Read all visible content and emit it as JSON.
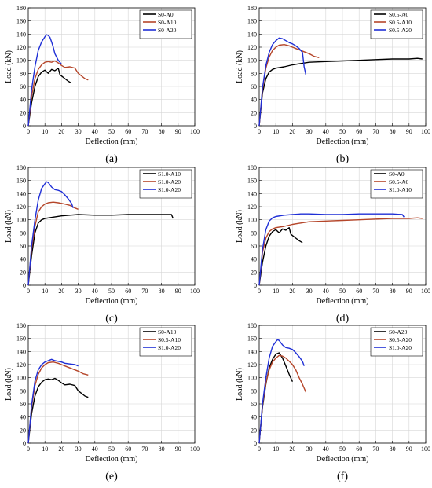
{
  "figure": {
    "panels": [
      "(a)",
      "(b)",
      "(c)",
      "(d)",
      "(e)",
      "(f)"
    ]
  },
  "colors": {
    "black": "#000000",
    "red": "#b5462a",
    "blue": "#1f2fd6"
  },
  "chart_data": [
    {
      "type": "line",
      "panel": "(a)",
      "xlabel": "Deflection (mm)",
      "ylabel": "Load (kN)",
      "xlim": [
        0,
        100
      ],
      "ylim": [
        0,
        180
      ],
      "xticks": [
        "0",
        "10",
        "20",
        "30",
        "40",
        "50",
        "60",
        "70",
        "80",
        "90",
        "100"
      ],
      "yticks": [
        "0",
        "20",
        "40",
        "60",
        "80",
        "100",
        "120",
        "140",
        "160",
        "180"
      ],
      "grid": true,
      "legend": "top-right",
      "series": [
        {
          "name": "S0-A0",
          "color": "#000000",
          "x": [
            0,
            2,
            4,
            6,
            8,
            10,
            12,
            14,
            16,
            18,
            19,
            20,
            22,
            24,
            26
          ],
          "y": [
            0,
            35,
            60,
            75,
            82,
            85,
            80,
            86,
            84,
            88,
            78,
            76,
            72,
            68,
            65
          ]
        },
        {
          "name": "S0-A10",
          "color": "#b5462a",
          "x": [
            0,
            2,
            4,
            6,
            8,
            10,
            12,
            14,
            16,
            18,
            20,
            22,
            25,
            28,
            30,
            34,
            36
          ],
          "y": [
            0,
            45,
            72,
            86,
            93,
            97,
            98,
            97,
            99,
            96,
            92,
            89,
            90,
            88,
            80,
            72,
            70
          ]
        },
        {
          "name": "S0-A20",
          "color": "#1f2fd6",
          "x": [
            0,
            2,
            4,
            6,
            8,
            10,
            11,
            12,
            13,
            14,
            15,
            16,
            18,
            20
          ],
          "y": [
            0,
            55,
            90,
            115,
            128,
            136,
            139,
            138,
            135,
            128,
            120,
            110,
            100,
            94
          ]
        }
      ]
    },
    {
      "type": "line",
      "panel": "(b)",
      "xlabel": "Deflection (mm)",
      "ylabel": "Load (kN)",
      "xlim": [
        0,
        100
      ],
      "ylim": [
        0,
        180
      ],
      "xticks": [
        "0",
        "10",
        "20",
        "30",
        "40",
        "50",
        "60",
        "70",
        "80",
        "90",
        "100"
      ],
      "yticks": [
        "0",
        "20",
        "40",
        "60",
        "80",
        "100",
        "120",
        "140",
        "160",
        "180"
      ],
      "grid": true,
      "legend": "top-right",
      "series": [
        {
          "name": "S0.5-A0",
          "color": "#000000",
          "x": [
            0,
            2,
            4,
            6,
            8,
            10,
            15,
            20,
            25,
            30,
            40,
            50,
            60,
            70,
            80,
            90,
            95,
            98
          ],
          "y": [
            0,
            50,
            72,
            82,
            86,
            88,
            90,
            93,
            95,
            97,
            98,
            99,
            100,
            101,
            102,
            102,
            103,
            102
          ]
        },
        {
          "name": "S0.5-A10",
          "color": "#b5462a",
          "x": [
            0,
            2,
            4,
            6,
            8,
            10,
            12,
            15,
            18,
            20,
            22,
            25,
            28,
            30,
            33,
            36
          ],
          "y": [
            0,
            55,
            88,
            105,
            115,
            120,
            123,
            124,
            122,
            120,
            118,
            115,
            112,
            110,
            106,
            104
          ]
        },
        {
          "name": "S0.5-A20",
          "color": "#1f2fd6",
          "x": [
            0,
            2,
            4,
            6,
            8,
            10,
            12,
            14,
            16,
            18,
            20,
            22,
            24,
            26,
            27,
            28
          ],
          "y": [
            0,
            58,
            92,
            112,
            124,
            130,
            134,
            133,
            130,
            127,
            125,
            122,
            118,
            112,
            90,
            78
          ]
        }
      ]
    },
    {
      "type": "line",
      "panel": "(c)",
      "xlabel": "Deflection (mm)",
      "ylabel": "Load (kN)",
      "xlim": [
        0,
        100
      ],
      "ylim": [
        0,
        180
      ],
      "xticks": [
        "0",
        "10",
        "20",
        "30",
        "40",
        "50",
        "60",
        "70",
        "80",
        "90",
        "100"
      ],
      "yticks": [
        "0",
        "20",
        "40",
        "60",
        "80",
        "100",
        "120",
        "140",
        "160",
        "180"
      ],
      "grid": true,
      "legend": "top-right",
      "series": [
        {
          "name": "S1.0-A10",
          "color": "#000000",
          "x": [
            0,
            2,
            4,
            6,
            8,
            10,
            15,
            20,
            25,
            30,
            40,
            50,
            60,
            70,
            80,
            86,
            87
          ],
          "y": [
            0,
            45,
            80,
            95,
            100,
            102,
            104,
            106,
            107,
            108,
            107,
            107,
            108,
            108,
            108,
            108,
            102
          ]
        },
        {
          "name": "S1.0-A20",
          "color": "#b5462a",
          "x": [
            0,
            2,
            4,
            6,
            8,
            10,
            12,
            15,
            18,
            20,
            22,
            25,
            28,
            30
          ],
          "y": [
            0,
            55,
            90,
            112,
            120,
            124,
            126,
            127,
            126,
            125,
            124,
            122,
            118,
            116
          ]
        },
        {
          "name": "S1.0-A20",
          "color": "#1f2fd6",
          "x": [
            0,
            2,
            4,
            6,
            8,
            10,
            11,
            12,
            14,
            16,
            18,
            20,
            22,
            24,
            26,
            27
          ],
          "y": [
            0,
            60,
            100,
            130,
            148,
            155,
            158,
            157,
            150,
            146,
            145,
            143,
            138,
            132,
            125,
            118
          ]
        }
      ]
    },
    {
      "type": "line",
      "panel": "(d)",
      "xlabel": "Deflection (mm)",
      "ylabel": "Load (kN)",
      "xlim": [
        0,
        100
      ],
      "ylim": [
        0,
        180
      ],
      "xticks": [
        "0",
        "10",
        "20",
        "30",
        "40",
        "50",
        "60",
        "70",
        "80",
        "90",
        "100"
      ],
      "yticks": [
        "0",
        "20",
        "40",
        "60",
        "80",
        "100",
        "120",
        "140",
        "160",
        "180"
      ],
      "grid": true,
      "legend": "top-right",
      "series": [
        {
          "name": "S0-A0",
          "color": "#000000",
          "x": [
            0,
            2,
            4,
            6,
            8,
            10,
            12,
            14,
            16,
            18,
            19,
            20,
            22,
            24,
            26
          ],
          "y": [
            0,
            35,
            60,
            75,
            82,
            85,
            80,
            86,
            84,
            88,
            78,
            76,
            72,
            68,
            65
          ]
        },
        {
          "name": "S0.5-A0",
          "color": "#b5462a",
          "x": [
            0,
            2,
            4,
            6,
            8,
            10,
            15,
            20,
            25,
            30,
            40,
            50,
            60,
            70,
            80,
            90,
            95,
            98
          ],
          "y": [
            0,
            50,
            72,
            82,
            86,
            88,
            90,
            93,
            95,
            97,
            98,
            99,
            100,
            101,
            102,
            102,
            103,
            102
          ]
        },
        {
          "name": "S1.0-A10",
          "color": "#1f2fd6",
          "x": [
            0,
            2,
            4,
            6,
            8,
            10,
            15,
            20,
            25,
            30,
            40,
            50,
            60,
            70,
            80,
            86,
            87
          ],
          "y": [
            0,
            55,
            85,
            98,
            103,
            105,
            107,
            108,
            109,
            109,
            108,
            108,
            109,
            109,
            109,
            108,
            104
          ]
        }
      ]
    },
    {
      "type": "line",
      "panel": "(e)",
      "xlabel": "Deflection (mm)",
      "ylabel": "Load (kN)",
      "xlim": [
        0,
        100
      ],
      "ylim": [
        0,
        180
      ],
      "xticks": [
        "0",
        "10",
        "20",
        "30",
        "40",
        "50",
        "60",
        "70",
        "80",
        "90",
        "100"
      ],
      "yticks": [
        "0",
        "20",
        "40",
        "60",
        "80",
        "100",
        "120",
        "140",
        "160",
        "180"
      ],
      "grid": true,
      "legend": "top-right",
      "series": [
        {
          "name": "S0-A10",
          "color": "#000000",
          "x": [
            0,
            2,
            4,
            6,
            8,
            10,
            12,
            14,
            16,
            18,
            20,
            22,
            25,
            28,
            30,
            34,
            36
          ],
          "y": [
            0,
            45,
            72,
            86,
            93,
            97,
            98,
            97,
            99,
            96,
            92,
            89,
            90,
            88,
            80,
            72,
            70
          ]
        },
        {
          "name": "S0.5-A10",
          "color": "#b5462a",
          "x": [
            0,
            2,
            4,
            6,
            8,
            10,
            12,
            15,
            18,
            20,
            22,
            25,
            28,
            30,
            33,
            36
          ],
          "y": [
            0,
            55,
            88,
            105,
            115,
            120,
            123,
            124,
            122,
            120,
            118,
            115,
            112,
            110,
            106,
            104
          ]
        },
        {
          "name": "S1.0-A20",
          "color": "#1f2fd6",
          "x": [
            0,
            2,
            4,
            6,
            8,
            10,
            12,
            14,
            16,
            18,
            20,
            22,
            25,
            28,
            30
          ],
          "y": [
            0,
            58,
            95,
            112,
            120,
            124,
            126,
            128,
            126,
            125,
            124,
            122,
            121,
            120,
            118
          ]
        }
      ]
    },
    {
      "type": "line",
      "panel": "(f)",
      "xlabel": "Deflection (mm)",
      "ylabel": "Load (kN)",
      "xlim": [
        0,
        100
      ],
      "ylim": [
        0,
        180
      ],
      "xticks": [
        "0",
        "10",
        "20",
        "30",
        "40",
        "50",
        "60",
        "70",
        "80",
        "90",
        "100"
      ],
      "yticks": [
        "0",
        "20",
        "40",
        "60",
        "80",
        "100",
        "120",
        "140",
        "160",
        "180"
      ],
      "grid": true,
      "legend": "top-right",
      "series": [
        {
          "name": "S0-A20",
          "color": "#000000",
          "x": [
            0,
            2,
            4,
            6,
            8,
            10,
            12,
            14,
            16,
            18,
            20
          ],
          "y": [
            0,
            55,
            90,
            115,
            128,
            136,
            138,
            130,
            118,
            105,
            94
          ]
        },
        {
          "name": "S0.5-A20",
          "color": "#b5462a",
          "x": [
            0,
            2,
            4,
            6,
            8,
            10,
            12,
            14,
            16,
            18,
            20,
            22,
            24,
            26,
            28
          ],
          "y": [
            0,
            58,
            92,
            112,
            124,
            130,
            134,
            133,
            130,
            125,
            120,
            112,
            100,
            90,
            78
          ]
        },
        {
          "name": "S1.0-A20",
          "color": "#1f2fd6",
          "x": [
            0,
            2,
            4,
            6,
            8,
            10,
            11,
            12,
            14,
            16,
            18,
            20,
            22,
            24,
            26,
            27
          ],
          "y": [
            0,
            60,
            100,
            130,
            148,
            155,
            158,
            157,
            150,
            146,
            145,
            143,
            138,
            132,
            125,
            118
          ]
        }
      ]
    }
  ]
}
